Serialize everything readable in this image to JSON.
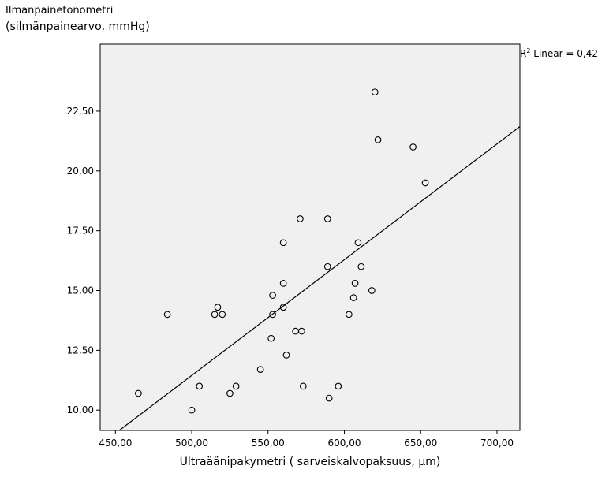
{
  "chart_data": {
    "type": "scatter",
    "title": "",
    "ylabel_line1": "Ilmanpainetonometri",
    "ylabel_line2": "(silmänpainearvo, mmHg)",
    "xlabel": "Ultraäänipakymetri ( sarveiskalvopaksuus, µm)",
    "xlim": [
      440,
      715
    ],
    "ylim": [
      9.15,
      25.3
    ],
    "x_ticks": [
      450,
      500,
      550,
      600,
      650,
      700
    ],
    "x_tick_labels": [
      "450,00",
      "500,00",
      "550,00",
      "600,00",
      "650,00",
      "700,00"
    ],
    "y_ticks": [
      10,
      12.5,
      15,
      17.5,
      20,
      22.5
    ],
    "y_tick_labels": [
      "10,00",
      "12,50",
      "15,00",
      "17,50",
      "20,00",
      "22,50"
    ],
    "fit_line": {
      "label_prefix": "R",
      "label_sup": "2",
      "label_suffix": " Linear = 0,42",
      "slope": 0.0484,
      "intercept": -12.75
    },
    "points": [
      {
        "x": 465,
        "y": 10.7
      },
      {
        "x": 484,
        "y": 14.0
      },
      {
        "x": 500,
        "y": 10.0
      },
      {
        "x": 505,
        "y": 11.0
      },
      {
        "x": 515,
        "y": 14.0
      },
      {
        "x": 517,
        "y": 14.3
      },
      {
        "x": 520,
        "y": 14.0
      },
      {
        "x": 525,
        "y": 10.7
      },
      {
        "x": 529,
        "y": 11.0
      },
      {
        "x": 545,
        "y": 11.7
      },
      {
        "x": 552,
        "y": 13.0
      },
      {
        "x": 553,
        "y": 14.8
      },
      {
        "x": 553,
        "y": 14.0
      },
      {
        "x": 560,
        "y": 17.0
      },
      {
        "x": 560,
        "y": 15.3
      },
      {
        "x": 560,
        "y": 14.3
      },
      {
        "x": 562,
        "y": 12.3
      },
      {
        "x": 568,
        "y": 13.3
      },
      {
        "x": 571,
        "y": 18.0
      },
      {
        "x": 572,
        "y": 13.3
      },
      {
        "x": 573,
        "y": 11.0
      },
      {
        "x": 589,
        "y": 18.0
      },
      {
        "x": 589,
        "y": 16.0
      },
      {
        "x": 590,
        "y": 10.5
      },
      {
        "x": 596,
        "y": 11.0
      },
      {
        "x": 603,
        "y": 14.0
      },
      {
        "x": 606,
        "y": 14.7
      },
      {
        "x": 607,
        "y": 15.3
      },
      {
        "x": 609,
        "y": 17.0
      },
      {
        "x": 611,
        "y": 16.0
      },
      {
        "x": 618,
        "y": 15.0
      },
      {
        "x": 620,
        "y": 23.3
      },
      {
        "x": 622,
        "y": 21.3
      },
      {
        "x": 645,
        "y": 21.0
      },
      {
        "x": 653,
        "y": 19.5
      }
    ]
  }
}
